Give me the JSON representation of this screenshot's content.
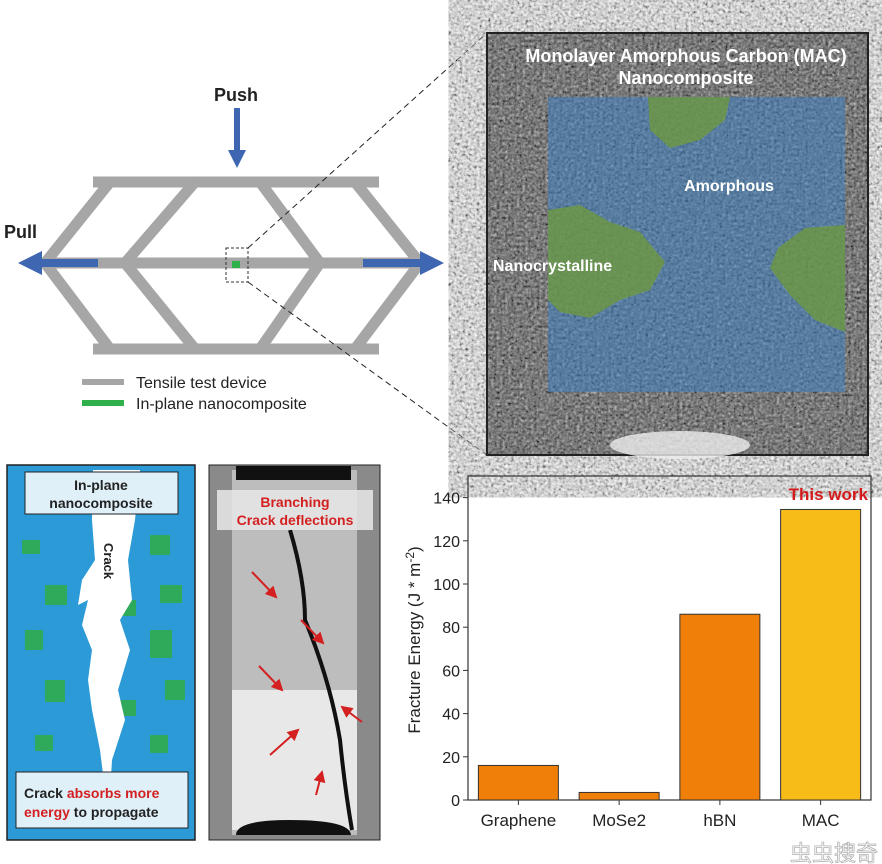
{
  "device": {
    "push_label": "Push",
    "pull_label": "Pull",
    "legend": [
      {
        "label": "Tensile test device",
        "color": "#a6a6a6"
      },
      {
        "label": "In-plane nanocomposite",
        "color": "#2fb04a"
      }
    ],
    "arrow_color": "#3f66b0"
  },
  "tem": {
    "title_line1": "Monolayer Amorphous Carbon (MAC)",
    "title_line2": "Nanocomposite",
    "amorphous_label": "Amorphous",
    "nanocrystalline_label": "Nanocrystalline",
    "amorphous_color": "#3c7fc0",
    "nanocrystalline_color": "#6f9a3a"
  },
  "schematic": {
    "title_line1": "In-plane",
    "title_line2": "nanocomposite",
    "crack_label": "Crack",
    "caption_black1": "Crack ",
    "caption_red1": "absorbs more",
    "caption_red2": "energy",
    "caption_black2": " to propagate",
    "matrix_color": "#2b9ad6",
    "grain_color": "#2eaa5a"
  },
  "sem": {
    "title_line1": "Branching",
    "title_line2": "Crack deflections",
    "highlight_color": "#d42020"
  },
  "chart_data": {
    "type": "bar",
    "categories": [
      "Graphene",
      "MoSe2",
      "hBN",
      "MAC"
    ],
    "values": [
      16,
      3.5,
      86,
      134.5
    ],
    "colors": [
      "#f07f0a",
      "#f07f0a",
      "#f07f0a",
      "#f8bc18"
    ],
    "ylabel": "Fracture Energy (J * m-2)",
    "ylabel_main": "Fracture Energy (J * m",
    "ylabel_sup": "-2",
    "ylabel_end": ")",
    "ylim": [
      0,
      150
    ],
    "yticks": [
      "0",
      "20",
      "40",
      "60",
      "80",
      "100",
      "120",
      "140"
    ],
    "annotation": "This work",
    "annotation_color": "#d41a1a",
    "grid": false
  },
  "watermark": "虫虫搜奇"
}
